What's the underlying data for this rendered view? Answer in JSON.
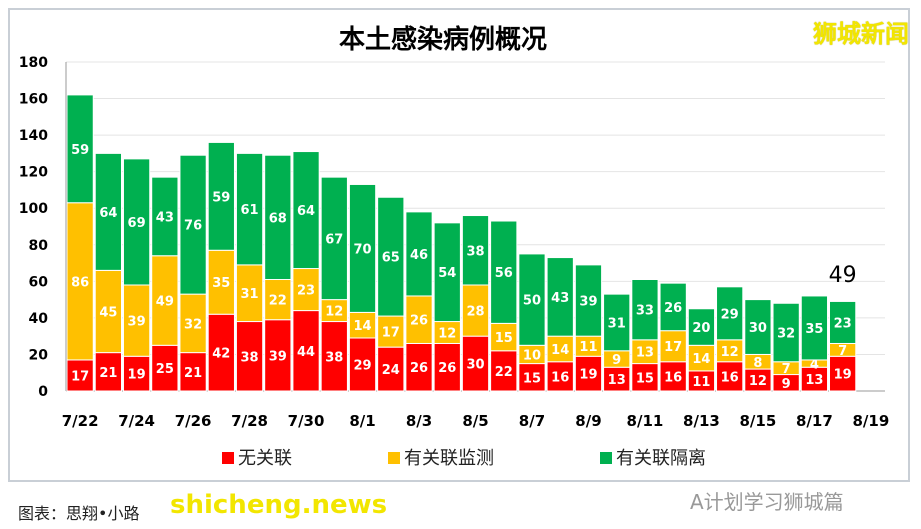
{
  "chart_data": {
    "type": "bar",
    "stacked": true,
    "title": "本土感染病例概况",
    "categories": [
      "7/22",
      "7/23",
      "7/24",
      "7/25",
      "7/26",
      "7/27",
      "7/28",
      "7/29",
      "7/30",
      "7/31",
      "8/1",
      "8/2",
      "8/3",
      "8/4",
      "8/5",
      "8/6",
      "8/7",
      "8/8",
      "8/9",
      "8/10",
      "8/11",
      "8/12",
      "8/13",
      "8/14",
      "8/15",
      "8/16",
      "8/17",
      "8/18"
    ],
    "x_tick_labels": [
      "7/22",
      "7/24",
      "7/26",
      "7/28",
      "7/30",
      "8/1",
      "8/3",
      "8/5",
      "8/7",
      "8/9",
      "8/11",
      "8/13",
      "8/15",
      "8/17",
      "8/19"
    ],
    "series": [
      {
        "name": "无关联",
        "color": "#ff0000",
        "values": [
          17,
          21,
          19,
          25,
          21,
          42,
          38,
          39,
          44,
          38,
          29,
          24,
          26,
          26,
          30,
          22,
          15,
          16,
          19,
          13,
          15,
          16,
          11,
          16,
          12,
          9,
          13,
          19
        ]
      },
      {
        "name": "有关联监测",
        "color": "#ffc000",
        "values": [
          86,
          45,
          39,
          49,
          32,
          35,
          31,
          22,
          23,
          12,
          14,
          17,
          26,
          12,
          28,
          15,
          10,
          14,
          11,
          9,
          13,
          17,
          14,
          12,
          8,
          7,
          4,
          7
        ]
      },
      {
        "name": "有关联隔离",
        "color": "#00b050",
        "values": [
          59,
          64,
          69,
          43,
          76,
          59,
          61,
          68,
          64,
          67,
          70,
          65,
          46,
          54,
          38,
          56,
          50,
          43,
          39,
          31,
          33,
          26,
          20,
          29,
          30,
          32,
          35,
          23
        ]
      }
    ],
    "annotation": "49",
    "ylim": [
      0,
      180
    ],
    "y_ticks": [
      0,
      20,
      40,
      60,
      80,
      100,
      120,
      140,
      160,
      180
    ],
    "grid": true,
    "legend": "bottom",
    "xlabel": "",
    "ylabel": ""
  },
  "watermarks": {
    "top_right": "狮城新闻",
    "bottom_left": "shicheng.news",
    "bottom_right": "A计划学习狮城篇"
  },
  "caption": "图表：思翔•小路"
}
